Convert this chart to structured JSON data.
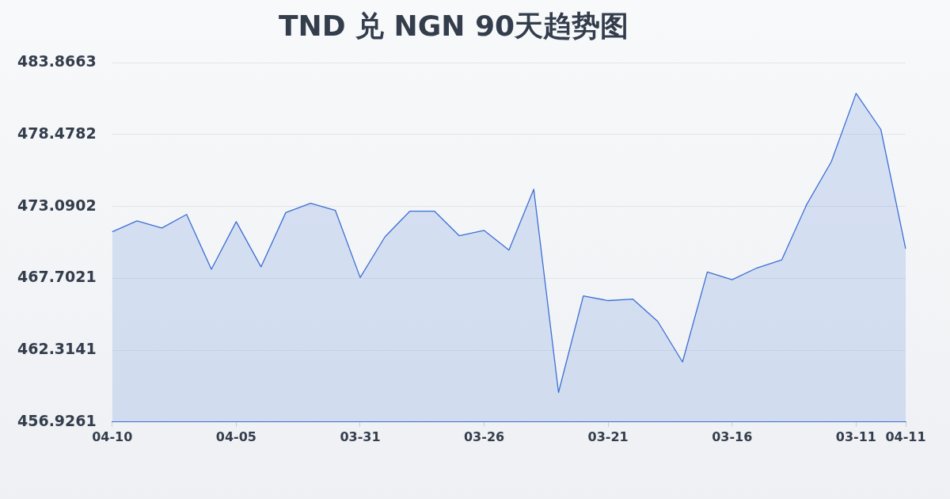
{
  "chart_data": {
    "type": "area",
    "title": "TND 兑 NGN 90天趋势图",
    "categories": [
      "04-10",
      null,
      null,
      null,
      null,
      "04-05",
      null,
      null,
      null,
      null,
      "03-31",
      null,
      null,
      null,
      null,
      "03-26",
      null,
      null,
      null,
      null,
      "03-21",
      null,
      null,
      null,
      null,
      "03-16",
      null,
      null,
      null,
      null,
      "03-11",
      null,
      "04-11"
    ],
    "values": [
      471.19,
      472.01,
      471.47,
      472.49,
      468.38,
      471.95,
      468.56,
      472.63,
      473.33,
      472.79,
      467.76,
      470.81,
      472.73,
      472.73,
      470.89,
      471.29,
      469.82,
      474.38,
      459.14,
      466.38,
      466.03,
      466.14,
      464.47,
      461.43,
      468.18,
      467.6,
      468.48,
      469.08,
      473.21,
      476.44,
      481.57,
      478.86,
      469.92
    ],
    "color": "#3b6fd4",
    "ylim": [
      456.9261,
      483.8663
    ],
    "yticks": [
      456.9261,
      462.3141,
      467.7021,
      473.0902,
      478.4782,
      483.8663
    ],
    "grid": "y",
    "legend": false
  }
}
